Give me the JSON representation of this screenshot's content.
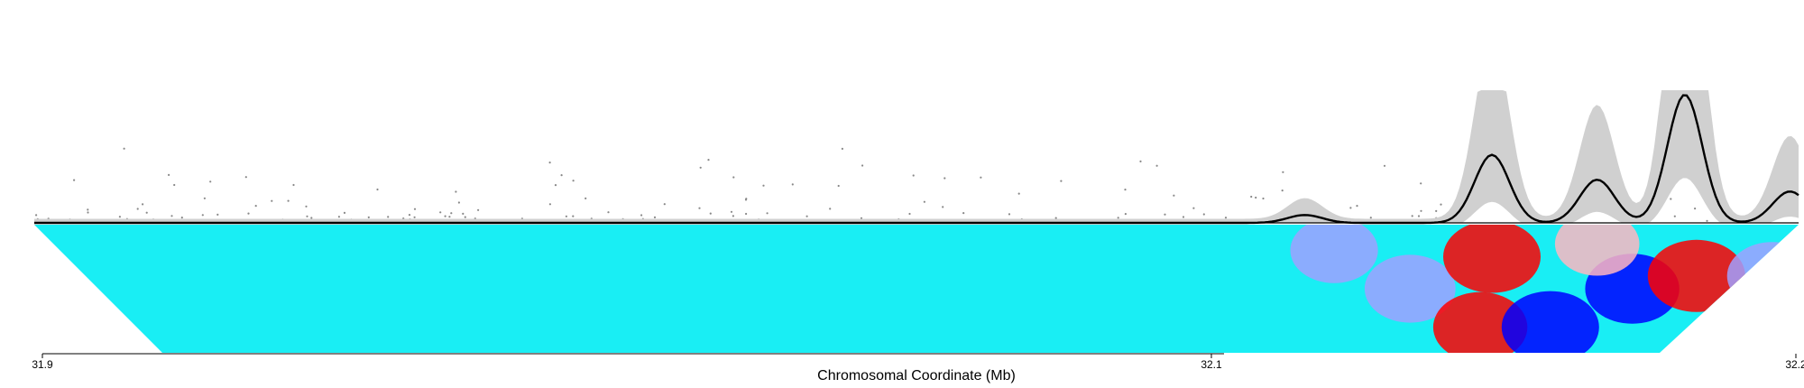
{
  "chart_data": {
    "type": "line",
    "xlabel": "Chromosomal Coordinate (Mb)",
    "xticks": [
      {
        "value": 31.9,
        "label": "31.9"
      },
      {
        "value": 32.1,
        "label": "32.1"
      },
      {
        "value": 32.2,
        "label": "32.2"
      }
    ],
    "xlim": [
      31.9,
      32.2
    ],
    "signal_track": {
      "line_color": "#000000",
      "band_color": "#d0d0d0",
      "point_color": "#888888",
      "peaks": [
        {
          "x": 32.116,
          "y": 0.06
        },
        {
          "x": 32.148,
          "y": 0.52
        },
        {
          "x": 32.166,
          "y": 0.33
        },
        {
          "x": 32.181,
          "y": 0.98
        },
        {
          "x": 32.199,
          "y": 0.24
        },
        {
          "x": 32.226,
          "y": 0.05
        }
      ]
    },
    "contact_map": {
      "colors": {
        "background": "#19eef4",
        "missing": "#c0c0c0",
        "negative_strong": "#0000ff",
        "negative_weak": "#a0a0ff",
        "positive_strong": "#ff0000",
        "positive_weak": "#ffb6c1"
      },
      "hotspots": [
        {
          "x": 32.134,
          "y": 0.5,
          "value": -0.8
        },
        {
          "x": 32.146,
          "y": 0.8,
          "value": 0.9
        },
        {
          "x": 32.158,
          "y": 0.8,
          "value": -1.0
        },
        {
          "x": 32.172,
          "y": 0.5,
          "value": -0.9
        },
        {
          "x": 32.183,
          "y": 0.4,
          "value": 1.0
        },
        {
          "x": 32.148,
          "y": 0.25,
          "value": 1.0
        },
        {
          "x": 32.166,
          "y": 0.15,
          "value": 0.6
        },
        {
          "x": 32.196,
          "y": 0.4,
          "value": -0.8
        },
        {
          "x": 32.121,
          "y": 0.2,
          "value": -0.7
        }
      ]
    }
  }
}
